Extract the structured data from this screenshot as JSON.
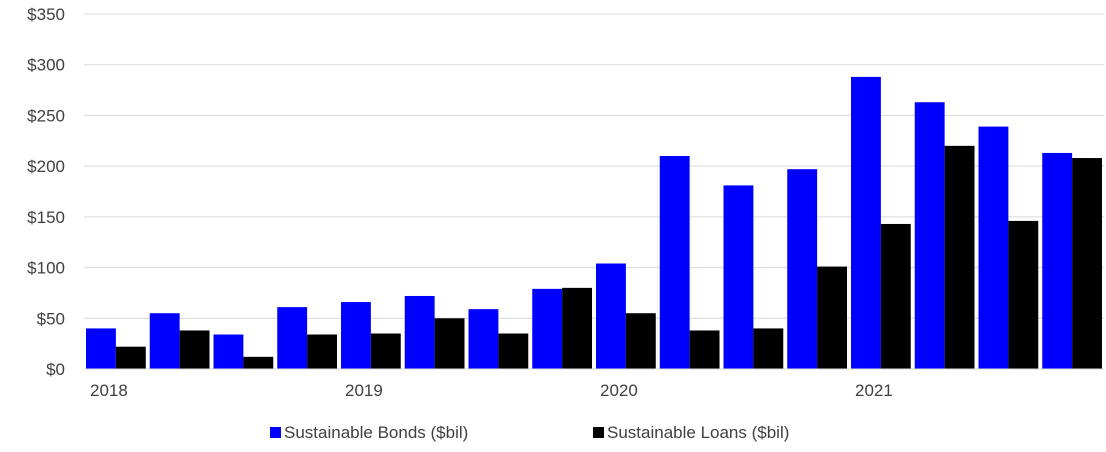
{
  "chart_data": {
    "type": "bar",
    "title": "",
    "xlabel": "",
    "ylabel": "",
    "ylim": [
      0,
      350
    ],
    "yticks": [
      0,
      50,
      100,
      150,
      200,
      250,
      300,
      350
    ],
    "ytick_labels": [
      "$0",
      "$50",
      "$100",
      "$150",
      "$200",
      "$250",
      "$300",
      "$350"
    ],
    "grid": true,
    "legend_position": "bottom",
    "categories": [
      "2018 Q1",
      "2018 Q2",
      "2018 Q3",
      "2018 Q4",
      "2019 Q1",
      "2019 Q2",
      "2019 Q3",
      "2019 Q4",
      "2020 Q1",
      "2020 Q2",
      "2020 Q3",
      "2020 Q4",
      "2021 Q1",
      "2021 Q2",
      "2021 Q3",
      "2021 Q4"
    ],
    "x_tick_labels": [
      {
        "label": "2018",
        "category_index": 0
      },
      {
        "label": "2019",
        "category_index": 4
      },
      {
        "label": "2020",
        "category_index": 8
      },
      {
        "label": "2021",
        "category_index": 12
      }
    ],
    "series": [
      {
        "name": "Sustainable Bonds ($bil)",
        "color": "#0000ff",
        "values": [
          40,
          55,
          34,
          61,
          66,
          72,
          59,
          79,
          104,
          210,
          181,
          197,
          288,
          263,
          239,
          213
        ]
      },
      {
        "name": "Sustainable Loans ($bil)",
        "color": "#000000",
        "values": [
          22,
          38,
          12,
          34,
          35,
          50,
          35,
          80,
          55,
          38,
          40,
          101,
          143,
          220,
          146,
          208
        ]
      }
    ]
  }
}
